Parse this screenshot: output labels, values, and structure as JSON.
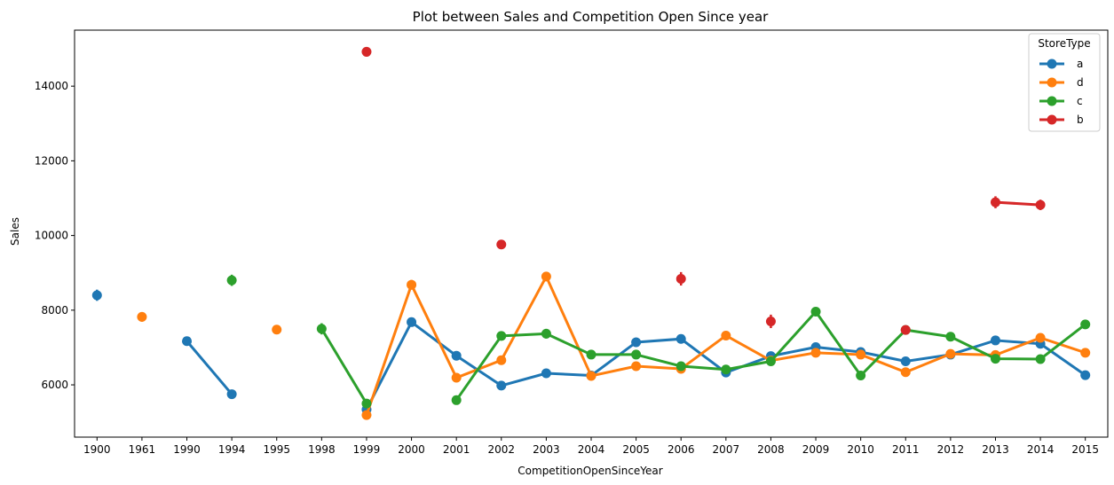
{
  "chart_data": {
    "type": "line",
    "title": "Plot between Sales and Competition Open Since year",
    "xlabel": "CompetitionOpenSinceYear",
    "ylabel": "Sales",
    "categories": [
      "1900",
      "1961",
      "1990",
      "1994",
      "1995",
      "1998",
      "1999",
      "2000",
      "2001",
      "2002",
      "2003",
      "2004",
      "2005",
      "2006",
      "2007",
      "2008",
      "2009",
      "2010",
      "2011",
      "2012",
      "2013",
      "2014",
      "2015"
    ],
    "ylim": [
      4600,
      15500
    ],
    "yticks": [
      6000,
      8000,
      10000,
      12000,
      14000
    ],
    "legend": {
      "title": "StoreType",
      "position": "top-right"
    },
    "series": [
      {
        "name": "a",
        "color": "#1f77b4",
        "values": [
          8400,
          null,
          7170,
          5750,
          null,
          null,
          5340,
          7680,
          6780,
          5980,
          6310,
          6250,
          7140,
          7230,
          6330,
          6770,
          7010,
          6880,
          6630,
          6810,
          7190,
          7100,
          6260
        ],
        "err": [
          150,
          null,
          80,
          80,
          null,
          null,
          100,
          90,
          60,
          60,
          60,
          50,
          60,
          60,
          50,
          50,
          50,
          60,
          60,
          50,
          50,
          70,
          60
        ]
      },
      {
        "name": "d",
        "color": "#ff7f0e",
        "values": [
          null,
          7820,
          null,
          null,
          7480,
          null,
          5190,
          8680,
          6190,
          6660,
          8900,
          6240,
          6500,
          6430,
          7320,
          6650,
          6860,
          6810,
          6340,
          6830,
          6800,
          7260,
          6860
        ],
        "err": [
          null,
          130,
          null,
          null,
          80,
          null,
          100,
          130,
          70,
          60,
          90,
          60,
          50,
          50,
          60,
          50,
          50,
          50,
          50,
          50,
          50,
          70,
          50
        ]
      },
      {
        "name": "c",
        "color": "#2ca02c",
        "values": [
          null,
          null,
          null,
          8800,
          null,
          7500,
          5500,
          null,
          5590,
          7310,
          7370,
          6810,
          6810,
          6500,
          6410,
          6630,
          7960,
          6250,
          7470,
          7290,
          6700,
          6690,
          7620
        ],
        "err": [
          null,
          null,
          null,
          150,
          null,
          150,
          100,
          null,
          60,
          70,
          130,
          60,
          50,
          50,
          60,
          60,
          60,
          60,
          60,
          50,
          60,
          60,
          50
        ]
      },
      {
        "name": "b",
        "color": "#d62728",
        "values": [
          null,
          null,
          null,
          null,
          null,
          null,
          14920,
          null,
          null,
          9760,
          null,
          null,
          null,
          8840,
          null,
          7700,
          null,
          null,
          7470,
          null,
          10890,
          10820,
          null
        ],
        "err": [
          null,
          null,
          null,
          null,
          null,
          null,
          130,
          null,
          null,
          120,
          null,
          null,
          null,
          180,
          null,
          180,
          null,
          null,
          60,
          null,
          160,
          140,
          null
        ]
      }
    ]
  }
}
